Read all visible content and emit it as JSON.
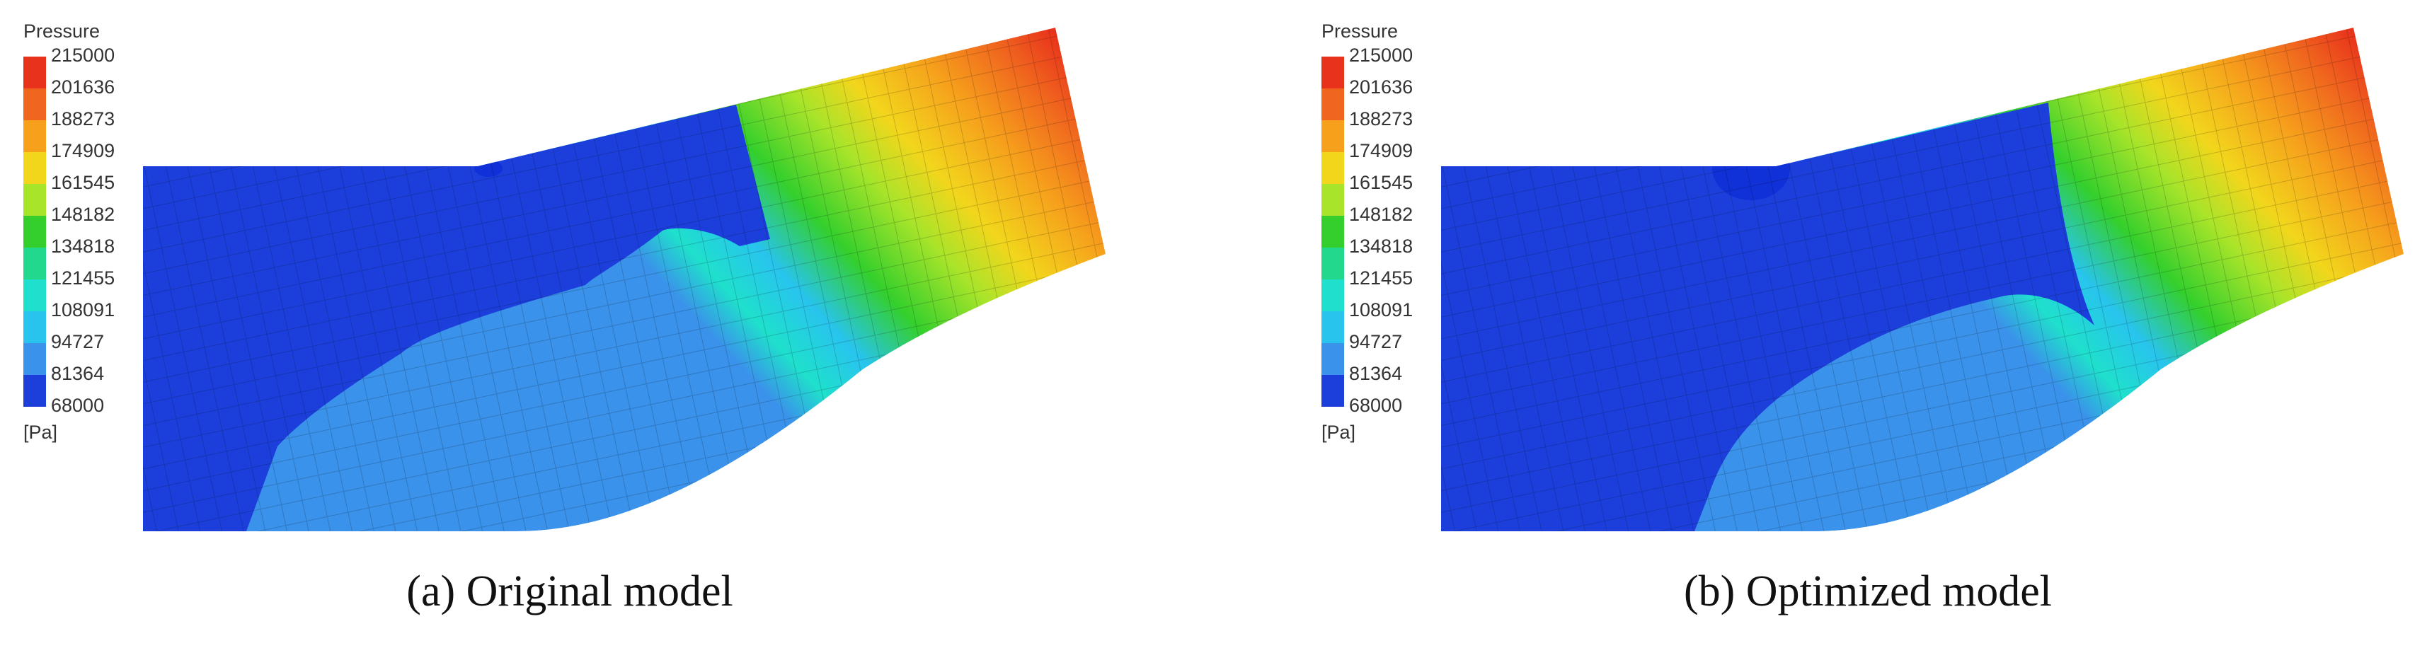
{
  "panels": [
    {
      "legend": {
        "title": "Pressure",
        "levels": [
          215000,
          201636,
          188273,
          174909,
          161545,
          148182,
          134818,
          121455,
          108091,
          94727,
          81364,
          68000
        ],
        "unit": "[Pa]",
        "colors": [
          "#e8321c",
          "#f0661e",
          "#f6a01c",
          "#f2d61c",
          "#a8e42a",
          "#34cf2c",
          "#22d88c",
          "#1fe0cc",
          "#28c4ee",
          "#3a92ea",
          "#1c3fdc"
        ]
      },
      "caption": "(a) Original model"
    },
    {
      "legend": {
        "title": "Pressure",
        "levels": [
          215000,
          201636,
          188273,
          174909,
          161545,
          148182,
          134818,
          121455,
          108091,
          94727,
          81364,
          68000
        ],
        "unit": "[Pa]",
        "colors": [
          "#e8321c",
          "#f0661e",
          "#f6a01c",
          "#f2d61c",
          "#a8e42a",
          "#34cf2c",
          "#22d88c",
          "#1fe0cc",
          "#28c4ee",
          "#3a92ea",
          "#1c3fdc"
        ]
      },
      "caption": "(b) Optimized model"
    }
  ]
}
